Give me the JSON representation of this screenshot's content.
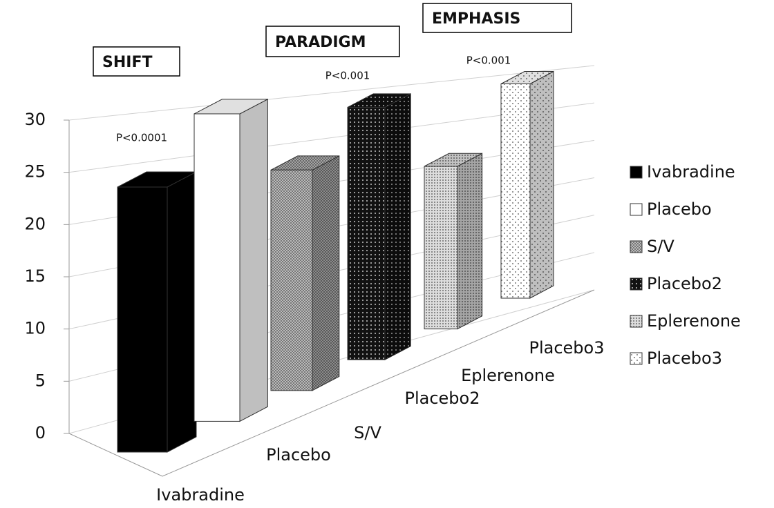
{
  "chart_data": {
    "type": "bar3d",
    "categories": [
      "Ivabradine",
      "Placebo",
      "S/V",
      "Placebo2",
      "Eplerenone",
      "Placebo3"
    ],
    "values": [
      24,
      29.5,
      22.5,
      27.5,
      19,
      27
    ],
    "ylim": [
      0,
      30
    ],
    "yticks": [
      0,
      5,
      10,
      15,
      20,
      25,
      30
    ],
    "grid": true,
    "legend": "right",
    "trials": [
      "SHIFT",
      "PARADIGM",
      "EMPHASIS"
    ],
    "annotations": [
      "P<0.0001",
      "P<0.001",
      "P<0.001"
    ]
  }
}
